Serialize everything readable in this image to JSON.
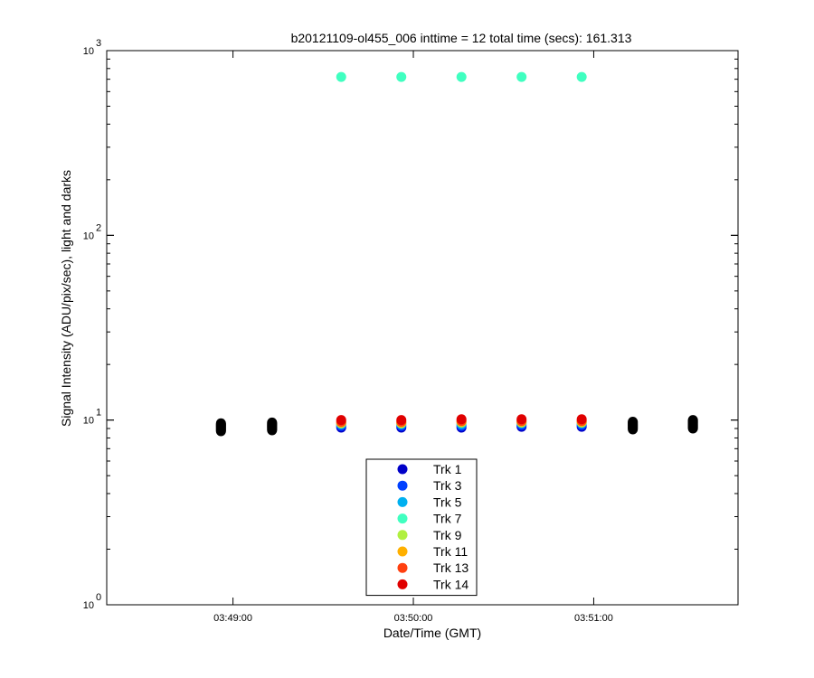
{
  "chart_data": {
    "type": "scatter",
    "title": "b20121109-ol455_006 inttime = 12 total time (secs): 161.313",
    "xlabel": "Date/Time (GMT)",
    "ylabel": "Signal Intensity (ADU/pix/sec), light and darks",
    "y_scale": "log",
    "ylim": [
      1,
      1000
    ],
    "xlim": [
      "03:48:18",
      "03:51:48"
    ],
    "x_ticks": [
      "03:49:00",
      "03:50:00",
      "03:51:00"
    ],
    "y_ticks": [
      {
        "base": "10",
        "exp": "0"
      },
      {
        "base": "10",
        "exp": "1"
      },
      {
        "base": "10",
        "exp": "2"
      },
      {
        "base": "10",
        "exp": "3"
      }
    ],
    "legend_position": "bottom-center",
    "light_times": [
      "03:49:36",
      "03:49:56",
      "03:50:16",
      "03:50:36",
      "03:50:56"
    ],
    "series": [
      {
        "name": "Trk 1",
        "color": "#0000c8",
        "values": [
          9.1,
          9.1,
          9.1,
          9.2,
          9.2
        ]
      },
      {
        "name": "Trk 3",
        "color": "#0040ff",
        "values": [
          9.3,
          9.3,
          9.3,
          9.4,
          9.4
        ]
      },
      {
        "name": "Trk 5",
        "color": "#00b0f0",
        "values": [
          9.5,
          9.5,
          9.5,
          9.6,
          9.6
        ]
      },
      {
        "name": "Trk 7",
        "color": "#40ffc0",
        "values": [
          720,
          720,
          720,
          720,
          720
        ]
      },
      {
        "name": "Trk 9",
        "color": "#b0f040",
        "values": [
          9.6,
          9.6,
          9.7,
          9.7,
          9.7
        ]
      },
      {
        "name": "Trk 11",
        "color": "#ffb000",
        "values": [
          9.7,
          9.7,
          9.8,
          9.8,
          9.8
        ]
      },
      {
        "name": "Trk 13",
        "color": "#ff4010",
        "values": [
          9.8,
          9.8,
          9.9,
          9.9,
          9.9
        ]
      },
      {
        "name": "Trk 14",
        "color": "#e00000",
        "values": [
          10.0,
          10.0,
          10.1,
          10.1,
          10.1
        ]
      }
    ],
    "darks": {
      "color": "#000000",
      "groups": [
        {
          "time": "03:48:56",
          "values": [
            8.7,
            8.8,
            8.9,
            9.0,
            9.1,
            9.2,
            9.3,
            9.4,
            9.5,
            9.6
          ]
        },
        {
          "time": "03:49:13",
          "values": [
            8.8,
            8.9,
            9.0,
            9.1,
            9.2,
            9.3,
            9.4,
            9.5,
            9.6,
            9.7
          ]
        },
        {
          "time": "03:51:13",
          "values": [
            8.9,
            9.0,
            9.1,
            9.2,
            9.3,
            9.4,
            9.5,
            9.6,
            9.7,
            9.8
          ]
        },
        {
          "time": "03:51:33",
          "values": [
            9.0,
            9.1,
            9.2,
            9.3,
            9.4,
            9.5,
            9.6,
            9.7,
            9.8,
            9.9,
            10.0
          ]
        }
      ]
    }
  }
}
